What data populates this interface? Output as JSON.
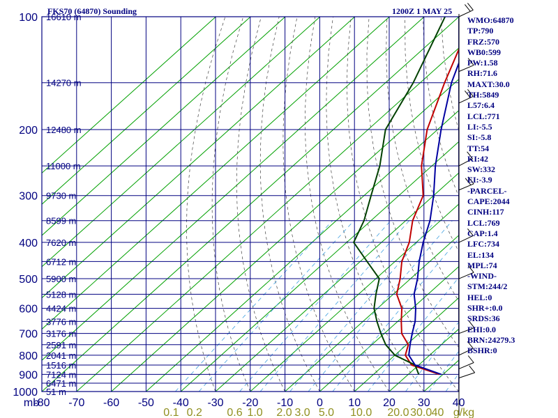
{
  "header": {
    "station": "FKS70 (64870) Sounding",
    "time": "1200Z  1 MAY 25"
  },
  "stats": [
    "WMO:64870",
    "TP:790",
    "FRZ:570",
    "WB0:599",
    "PW:1.58",
    "RH:71.6",
    "MAXT:30.0",
    "TH:5849",
    "L57:6.4",
    "LCL:771",
    "LI:-5.5",
    "SI:-5.8",
    "TT:54",
    "KI:42",
    "SW:332",
    "EI:-3.9",
    "-PARCEL-",
    "CAPE:2044",
    "CINH:117",
    "LCL:769",
    "CAP:1.4",
    "LFC:734",
    "EL:134",
    "MPL:74",
    "-WIND-",
    "STM:244/2",
    "HEL:0",
    "SHR+:0.0",
    "SRDS:36",
    "EHI:0.0",
    "BRN:24279.3",
    "BSHR:0"
  ],
  "colors": {
    "axis": "#000080",
    "isotherm": "#00a000",
    "temperature": "#c00000",
    "dewpoint": "#004000",
    "parcel": "#0000a0",
    "dry_adiabat": "#404040",
    "mixing_ratio": "#40a0e0",
    "mixing_label": "#909020"
  },
  "chart_data": {
    "type": "line",
    "title": "FKS70 (64870) Sounding",
    "x_unit_label": "mb",
    "mixing_unit_label": "g/kg",
    "pressure_ticks": [
      100,
      200,
      300,
      400,
      500,
      600,
      700,
      800,
      900,
      1000
    ],
    "temperature_ticks": [
      -80,
      -70,
      -60,
      -50,
      -40,
      -30,
      -20,
      -10,
      0,
      10,
      20,
      30,
      40
    ],
    "xlim": [
      -80,
      40
    ],
    "ylim": [
      1000,
      100
    ],
    "mixing_ratio_ticks": [
      "0.1",
      "0.2",
      "0.6",
      "1.0",
      "2.0",
      "3.0",
      "5.0",
      "10.0",
      "20.0",
      "30.0",
      "40"
    ],
    "heights": [
      {
        "p": 100,
        "h": "16610 m"
      },
      {
        "p": 150,
        "h": "14270 m"
      },
      {
        "p": 200,
        "h": "12480 m"
      },
      {
        "p": 250,
        "h": "11000 m"
      },
      {
        "p": 300,
        "h": "9730 m"
      },
      {
        "p": 350,
        "h": "8599 m"
      },
      {
        "p": 400,
        "h": "7620 m"
      },
      {
        "p": 450,
        "h": "6712 m"
      },
      {
        "p": 500,
        "h": "5900 m"
      },
      {
        "p": 550,
        "h": "5128 m"
      },
      {
        "p": 600,
        "h": "4424 m"
      },
      {
        "p": 650,
        "h": "3776 m"
      },
      {
        "p": 700,
        "h": "3176 m"
      },
      {
        "p": 750,
        "h": "2591 m"
      },
      {
        "p": 800,
        "h": "2041 m"
      },
      {
        "p": 850,
        "h": "1516 m"
      },
      {
        "p": 900,
        "h": "7124 m"
      },
      {
        "p": 950,
        "h": "6471 m"
      },
      {
        "p": 1000,
        "h": "51 m"
      }
    ],
    "series": [
      {
        "key": "temperature",
        "points": [
          [
            900,
            29
          ],
          [
            850,
            18
          ],
          [
            800,
            13
          ],
          [
            750,
            10.5
          ],
          [
            700,
            5
          ],
          [
            650,
            1
          ],
          [
            600,
            -3
          ],
          [
            550,
            -9
          ],
          [
            500,
            -13
          ],
          [
            450,
            -18
          ],
          [
            400,
            -22
          ],
          [
            350,
            -28
          ],
          [
            300,
            -33
          ],
          [
            250,
            -43
          ],
          [
            200,
            -53
          ],
          [
            150,
            -63
          ],
          [
            100,
            -76
          ]
        ]
      },
      {
        "key": "dewpoint",
        "points": [
          [
            900,
            23
          ],
          [
            850,
            19
          ],
          [
            800,
            10
          ],
          [
            750,
            4
          ],
          [
            700,
            -1
          ],
          [
            650,
            -6
          ],
          [
            600,
            -11
          ],
          [
            550,
            -15
          ],
          [
            500,
            -19
          ],
          [
            450,
            -28
          ],
          [
            400,
            -38
          ],
          [
            350,
            -42
          ],
          [
            300,
            -48
          ],
          [
            250,
            -55
          ],
          [
            200,
            -65
          ],
          [
            150,
            -72
          ],
          [
            100,
            -84
          ]
        ]
      },
      {
        "key": "parcel",
        "points": [
          [
            900,
            29.5
          ],
          [
            850,
            19
          ],
          [
            800,
            14
          ],
          [
            750,
            11
          ],
          [
            700,
            8
          ],
          [
            650,
            5
          ],
          [
            600,
            1
          ],
          [
            550,
            -4
          ],
          [
            500,
            -8
          ],
          [
            450,
            -13
          ],
          [
            400,
            -18
          ],
          [
            350,
            -23
          ],
          [
            300,
            -30
          ],
          [
            250,
            -39
          ],
          [
            200,
            -49
          ],
          [
            150,
            -61
          ],
          [
            100,
            -75
          ]
        ]
      }
    ],
    "wind_barbs": [
      {
        "p": 100,
        "dir": 250,
        "spd": 20
      },
      {
        "p": 140,
        "dir": 240,
        "spd": 10
      },
      {
        "p": 170,
        "dir": 250,
        "spd": 20
      },
      {
        "p": 250,
        "dir": 260,
        "spd": 10
      },
      {
        "p": 290,
        "dir": 240,
        "spd": 20
      },
      {
        "p": 400,
        "dir": 250,
        "spd": 10
      },
      {
        "p": 500,
        "dir": 240,
        "spd": 10
      },
      {
        "p": 700,
        "dir": 230,
        "spd": 5
      },
      {
        "p": 800,
        "dir": 250,
        "spd": 5
      },
      {
        "p": 870,
        "dir": 240,
        "spd": 5
      },
      {
        "p": 920,
        "dir": 220,
        "spd": 5
      }
    ]
  }
}
